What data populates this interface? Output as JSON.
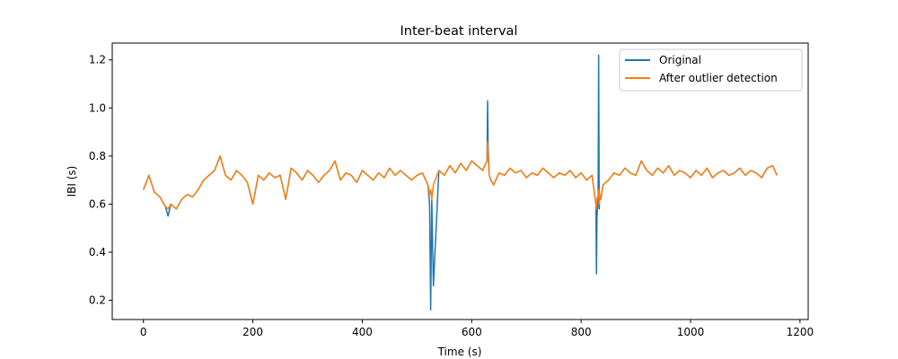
{
  "chart_data": {
    "type": "line",
    "title": "Inter-beat interval",
    "xlabel": "Time (s)",
    "ylabel": "IBI (s)",
    "xlim": [
      -57,
      1215
    ],
    "ylim": [
      0.12,
      1.27
    ],
    "xticks": [
      0,
      200,
      400,
      600,
      800,
      1000,
      1200
    ],
    "yticks": [
      0.2,
      0.4,
      0.6,
      0.8,
      1.0,
      1.2
    ],
    "xtick_labels": [
      "0",
      "200",
      "400",
      "600",
      "800",
      "1000",
      "1200"
    ],
    "ytick_labels": [
      "0.2",
      "0.4",
      "0.6",
      "0.8",
      "1.0",
      "1.2"
    ],
    "grid": false,
    "legend": "top-right",
    "series": [
      {
        "name": "Original",
        "color": "#1f77b4",
        "x": [
          0,
          10,
          20,
          30,
          40,
          45,
          50,
          60,
          70,
          80,
          90,
          100,
          110,
          120,
          130,
          140,
          150,
          160,
          170,
          180,
          190,
          200,
          210,
          220,
          230,
          240,
          250,
          260,
          270,
          280,
          290,
          300,
          310,
          320,
          330,
          340,
          350,
          360,
          370,
          380,
          390,
          400,
          410,
          420,
          430,
          440,
          450,
          460,
          470,
          480,
          490,
          500,
          510,
          520,
          523,
          525,
          527,
          530,
          540,
          550,
          560,
          570,
          580,
          590,
          600,
          610,
          620,
          628,
          629,
          630,
          632,
          635,
          640,
          650,
          660,
          670,
          680,
          690,
          700,
          710,
          720,
          730,
          740,
          750,
          760,
          770,
          780,
          790,
          800,
          810,
          820,
          827,
          828,
          829,
          831,
          832,
          833,
          834,
          836,
          840,
          850,
          860,
          870,
          880,
          890,
          900,
          910,
          920,
          930,
          940,
          950,
          960,
          970,
          980,
          990,
          1000,
          1010,
          1020,
          1030,
          1040,
          1050,
          1060,
          1070,
          1080,
          1090,
          1100,
          1110,
          1120,
          1130,
          1140,
          1150,
          1158
        ],
        "y": [
          0.66,
          0.72,
          0.65,
          0.63,
          0.59,
          0.55,
          0.6,
          0.58,
          0.62,
          0.64,
          0.63,
          0.66,
          0.7,
          0.72,
          0.74,
          0.8,
          0.72,
          0.7,
          0.74,
          0.72,
          0.69,
          0.6,
          0.72,
          0.7,
          0.73,
          0.71,
          0.72,
          0.62,
          0.75,
          0.73,
          0.7,
          0.74,
          0.72,
          0.69,
          0.72,
          0.74,
          0.78,
          0.7,
          0.73,
          0.72,
          0.69,
          0.74,
          0.72,
          0.7,
          0.73,
          0.71,
          0.75,
          0.72,
          0.74,
          0.72,
          0.7,
          0.72,
          0.73,
          0.68,
          0.6,
          0.16,
          0.62,
          0.26,
          0.74,
          0.72,
          0.76,
          0.73,
          0.77,
          0.74,
          0.78,
          0.76,
          0.74,
          0.78,
          1.03,
          0.84,
          0.72,
          0.7,
          0.68,
          0.73,
          0.72,
          0.75,
          0.73,
          0.74,
          0.71,
          0.73,
          0.72,
          0.75,
          0.73,
          0.71,
          0.73,
          0.72,
          0.74,
          0.71,
          0.73,
          0.7,
          0.72,
          0.6,
          0.31,
          0.55,
          0.62,
          1.22,
          0.58,
          0.64,
          0.62,
          0.68,
          0.7,
          0.73,
          0.72,
          0.75,
          0.73,
          0.72,
          0.78,
          0.74,
          0.72,
          0.75,
          0.73,
          0.76,
          0.72,
          0.74,
          0.73,
          0.71,
          0.74,
          0.72,
          0.75,
          0.71,
          0.73,
          0.74,
          0.72,
          0.73,
          0.75,
          0.72,
          0.74,
          0.73,
          0.71,
          0.75,
          0.76,
          0.72
        ]
      },
      {
        "name": "After outlier detection",
        "color": "#ff7f0e",
        "x": [
          0,
          10,
          20,
          30,
          40,
          45,
          50,
          60,
          70,
          80,
          90,
          100,
          110,
          120,
          130,
          140,
          150,
          160,
          170,
          180,
          190,
          200,
          210,
          220,
          230,
          240,
          250,
          260,
          270,
          280,
          290,
          300,
          310,
          320,
          330,
          340,
          350,
          360,
          370,
          380,
          390,
          400,
          410,
          420,
          430,
          440,
          450,
          460,
          470,
          480,
          490,
          500,
          510,
          520,
          523,
          525,
          527,
          530,
          540,
          550,
          560,
          570,
          580,
          590,
          600,
          610,
          620,
          628,
          629,
          630,
          632,
          635,
          640,
          650,
          660,
          670,
          680,
          690,
          700,
          710,
          720,
          730,
          740,
          750,
          760,
          770,
          780,
          790,
          800,
          810,
          820,
          827,
          828,
          829,
          831,
          832,
          833,
          834,
          836,
          840,
          850,
          860,
          870,
          880,
          890,
          900,
          910,
          920,
          930,
          940,
          950,
          960,
          970,
          980,
          990,
          1000,
          1010,
          1020,
          1030,
          1040,
          1050,
          1060,
          1070,
          1080,
          1090,
          1100,
          1110,
          1120,
          1130,
          1140,
          1150,
          1158
        ],
        "y": [
          0.66,
          0.72,
          0.65,
          0.63,
          0.59,
          0.58,
          0.6,
          0.58,
          0.62,
          0.64,
          0.63,
          0.66,
          0.7,
          0.72,
          0.74,
          0.8,
          0.72,
          0.7,
          0.74,
          0.72,
          0.69,
          0.6,
          0.72,
          0.7,
          0.73,
          0.71,
          0.72,
          0.62,
          0.75,
          0.73,
          0.7,
          0.74,
          0.72,
          0.69,
          0.72,
          0.74,
          0.78,
          0.7,
          0.73,
          0.72,
          0.69,
          0.74,
          0.72,
          0.7,
          0.73,
          0.71,
          0.75,
          0.72,
          0.74,
          0.72,
          0.7,
          0.72,
          0.73,
          0.68,
          0.64,
          0.66,
          0.62,
          0.68,
          0.74,
          0.72,
          0.76,
          0.73,
          0.77,
          0.74,
          0.78,
          0.76,
          0.74,
          0.78,
          0.86,
          0.8,
          0.72,
          0.7,
          0.68,
          0.73,
          0.72,
          0.75,
          0.73,
          0.74,
          0.71,
          0.73,
          0.72,
          0.75,
          0.73,
          0.71,
          0.73,
          0.72,
          0.74,
          0.71,
          0.73,
          0.7,
          0.72,
          0.6,
          0.58,
          0.62,
          0.64,
          0.66,
          0.6,
          0.64,
          0.62,
          0.68,
          0.7,
          0.73,
          0.72,
          0.75,
          0.73,
          0.72,
          0.78,
          0.74,
          0.72,
          0.75,
          0.73,
          0.76,
          0.72,
          0.74,
          0.73,
          0.71,
          0.74,
          0.72,
          0.75,
          0.71,
          0.73,
          0.74,
          0.72,
          0.73,
          0.75,
          0.72,
          0.74,
          0.73,
          0.71,
          0.75,
          0.76,
          0.72
        ]
      }
    ]
  }
}
